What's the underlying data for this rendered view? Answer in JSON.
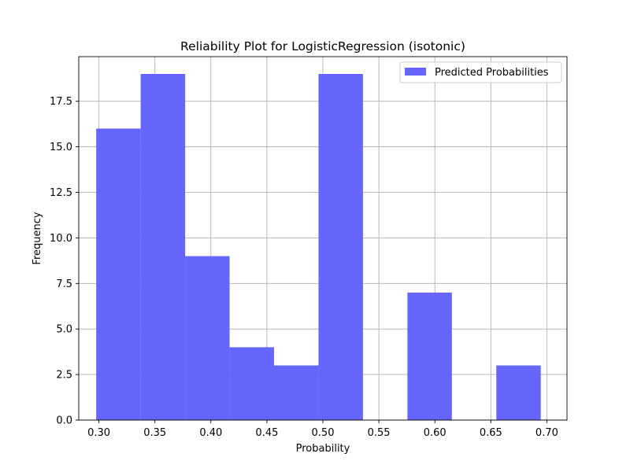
{
  "chart_data": {
    "type": "bar",
    "title": "Reliability Plot for LogisticRegression (isotonic)",
    "xlabel": "Probability",
    "ylabel": "Frequency",
    "xlim": [
      0.282,
      0.718
    ],
    "ylim": [
      0,
      19.95
    ],
    "xticks": [
      0.3,
      0.35,
      0.4,
      0.45,
      0.5,
      0.55,
      0.6,
      0.65,
      0.7
    ],
    "xtick_labels": [
      "0.30",
      "0.35",
      "0.40",
      "0.45",
      "0.50",
      "0.55",
      "0.60",
      "0.65",
      "0.70"
    ],
    "yticks": [
      0.0,
      2.5,
      5.0,
      7.5,
      10.0,
      12.5,
      15.0,
      17.5
    ],
    "ytick_labels": [
      "0.0",
      "2.5",
      "5.0",
      "7.5",
      "10.0",
      "12.5",
      "15.0",
      "17.5"
    ],
    "grid": true,
    "legend_position": "top-right",
    "series": [
      {
        "name": "Predicted Probabilities",
        "color": "#6666ff",
        "bins": [
          {
            "x0": 0.2976,
            "x1": 0.3373,
            "count": 16
          },
          {
            "x0": 0.3373,
            "x1": 0.377,
            "count": 19
          },
          {
            "x0": 0.377,
            "x1": 0.4167,
            "count": 9
          },
          {
            "x0": 0.4167,
            "x1": 0.4564,
            "count": 4
          },
          {
            "x0": 0.4564,
            "x1": 0.4961,
            "count": 3
          },
          {
            "x0": 0.4961,
            "x1": 0.5358,
            "count": 19
          },
          {
            "x0": 0.5358,
            "x1": 0.5755,
            "count": 0
          },
          {
            "x0": 0.5755,
            "x1": 0.6152,
            "count": 7
          },
          {
            "x0": 0.6152,
            "x1": 0.6549,
            "count": 0
          },
          {
            "x0": 0.6549,
            "x1": 0.6946,
            "count": 3
          }
        ]
      }
    ]
  }
}
